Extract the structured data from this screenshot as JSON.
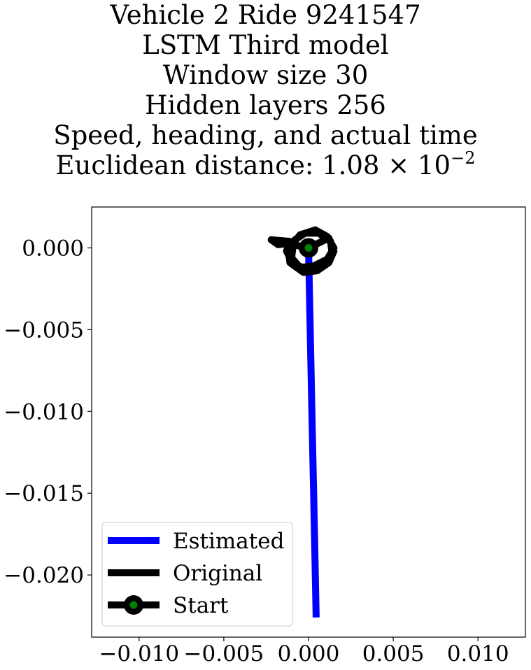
{
  "title": {
    "lines": [
      "Vehicle 2 Ride 9241547",
      "LSTM Third model",
      "Window size 30",
      "Hidden layers 256",
      "Speed, heading, and actual time"
    ],
    "distance_prefix": "Euclidean distance: 1.08",
    "distance_times": "×",
    "distance_base": "10",
    "distance_exponent": "−2"
  },
  "chart_data": {
    "type": "line",
    "xlim": [
      -0.0128,
      0.0128
    ],
    "ylim": [
      -0.0238,
      0.0025
    ],
    "x_ticks": [
      -0.01,
      -0.005,
      0.0,
      0.005,
      0.01
    ],
    "x_tick_labels": [
      "−0.010",
      "−0.005",
      "0.000",
      "0.005",
      "0.010"
    ],
    "y_ticks": [
      0.0,
      -0.005,
      -0.01,
      -0.015,
      -0.02
    ],
    "y_tick_labels": [
      "0.000",
      "−0.005",
      "−0.010",
      "−0.015",
      "−0.020"
    ],
    "grid": false,
    "legend_position": "lower-left",
    "series": [
      {
        "name": "Estimated",
        "color": "#0000ff",
        "points": [
          [
            0.0,
            0.0
          ],
          [
            0.0001,
            -0.005
          ],
          [
            0.0002,
            -0.01
          ],
          [
            0.0003,
            -0.015
          ],
          [
            0.0004,
            -0.02
          ],
          [
            0.00045,
            -0.0226
          ]
        ]
      },
      {
        "name": "Original",
        "color": "#000000",
        "points": [
          [
            0.0,
            0.0
          ],
          [
            0.0012,
            0.0006
          ],
          [
            0.0015,
            -0.0002
          ],
          [
            0.0012,
            -0.0009
          ],
          [
            0.0005,
            -0.0014
          ],
          [
            -0.0003,
            -0.0015
          ],
          [
            -0.0011,
            -0.0009
          ],
          [
            -0.0012,
            -0.0001
          ],
          [
            -0.0008,
            0.0005
          ],
          [
            -0.0002,
            0.0009
          ],
          [
            0.0006,
            0.0009
          ],
          [
            0.0013,
            0.0004
          ],
          [
            0.0014,
            -0.0004
          ],
          [
            0.0008,
            -0.0011
          ],
          [
            0.0,
            -0.0013
          ],
          [
            -0.0009,
            -0.001
          ],
          [
            -0.0013,
            -0.0002
          ],
          [
            -0.0011,
            0.0004
          ],
          [
            -0.0022,
            0.0005
          ],
          [
            -0.0018,
            0.0002
          ],
          [
            -0.0009,
            0.0003
          ],
          [
            -0.0005,
            0.0008
          ],
          [
            0.0004,
            0.0011
          ],
          [
            0.0011,
            0.0007
          ],
          [
            0.0015,
            0.0
          ],
          [
            0.0011,
            -0.0007
          ],
          [
            0.0003,
            -0.0011
          ],
          [
            -0.0005,
            -0.0012
          ],
          [
            -0.001,
            -0.0006
          ],
          [
            -0.0009,
            0.0002
          ],
          [
            0.0,
            0.0
          ]
        ]
      },
      {
        "name": "Start",
        "color": "#000000",
        "marker_color": "#008000",
        "points": [
          [
            0.0,
            0.0
          ]
        ]
      }
    ]
  }
}
